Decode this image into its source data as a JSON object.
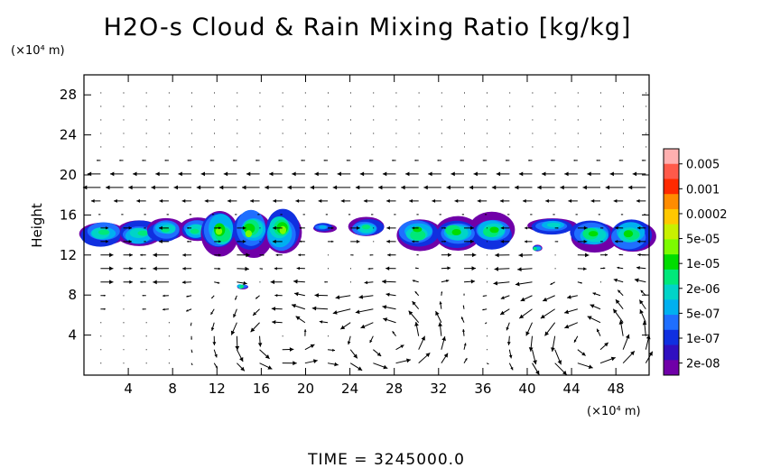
{
  "chart_data": {
    "type": "heatmap",
    "title": "H2O-s Cloud & Rain Mixing Ratio [kg/kg]",
    "ylabel": "Height",
    "x_unit": "(×10⁴ m)",
    "y_unit": "(×10⁴ m)",
    "xlim": [
      0,
      51
    ],
    "ylim": [
      0,
      30
    ],
    "x_ticks": [
      4,
      8,
      12,
      16,
      20,
      24,
      28,
      32,
      36,
      40,
      44,
      48
    ],
    "y_ticks": [
      4,
      8,
      12,
      16,
      20,
      24,
      28
    ],
    "footer": "TIME = 3245000.0",
    "colorbar": {
      "labels": [
        "0.005",
        "0.001",
        "0.0002",
        "5e-05",
        "1e-05",
        "2e-06",
        "5e-07",
        "1e-07",
        "2e-08"
      ],
      "colors": [
        "#ffb0b0",
        "#ff5a4a",
        "#ff2a00",
        "#ff8c00",
        "#ffc800",
        "#c8f000",
        "#7cfc00",
        "#00dd00",
        "#00e87a",
        "#00d4c8",
        "#00b0f0",
        "#1f6fff",
        "#1030e0",
        "#3010c0",
        "#7000a8"
      ]
    },
    "cloud_blobs": [
      {
        "x": [
          0,
          6.8
        ],
        "y": [
          12.8,
          15.5
        ],
        "level": 3
      },
      {
        "x": [
          6,
          11.5
        ],
        "y": [
          13.2,
          15.8
        ],
        "level": 3
      },
      {
        "x": [
          11,
          19.2
        ],
        "y": [
          12.2,
          16.5
        ],
        "level": 5
      },
      {
        "x": [
          20.8,
          22.5
        ],
        "y": [
          14.2,
          15.2
        ],
        "level": 1
      },
      {
        "x": [
          24.2,
          26.8
        ],
        "y": [
          13.8,
          15.8
        ],
        "level": 3
      },
      {
        "x": [
          28.5,
          38.5
        ],
        "y": [
          12.6,
          15.9
        ],
        "level": 4
      },
      {
        "x": [
          40.6,
          44.2
        ],
        "y": [
          14.0,
          15.8
        ],
        "level": 2
      },
      {
        "x": [
          44.2,
          51
        ],
        "y": [
          12.4,
          15.7
        ],
        "level": 4
      },
      {
        "x": [
          13.8,
          14.6
        ],
        "y": [
          8.6,
          9.1
        ],
        "level": 3
      },
      {
        "x": [
          40.6,
          41.3
        ],
        "y": [
          12.3,
          13.0
        ],
        "level": 3
      }
    ],
    "vortices": [
      {
        "cx": 17.5,
        "cy": 4.0,
        "r": 3.2
      },
      {
        "cx": 27.5,
        "cy": 3.5,
        "r": 3.5
      },
      {
        "cx": 45.5,
        "cy": 3.5,
        "r": 3.8
      }
    ]
  }
}
